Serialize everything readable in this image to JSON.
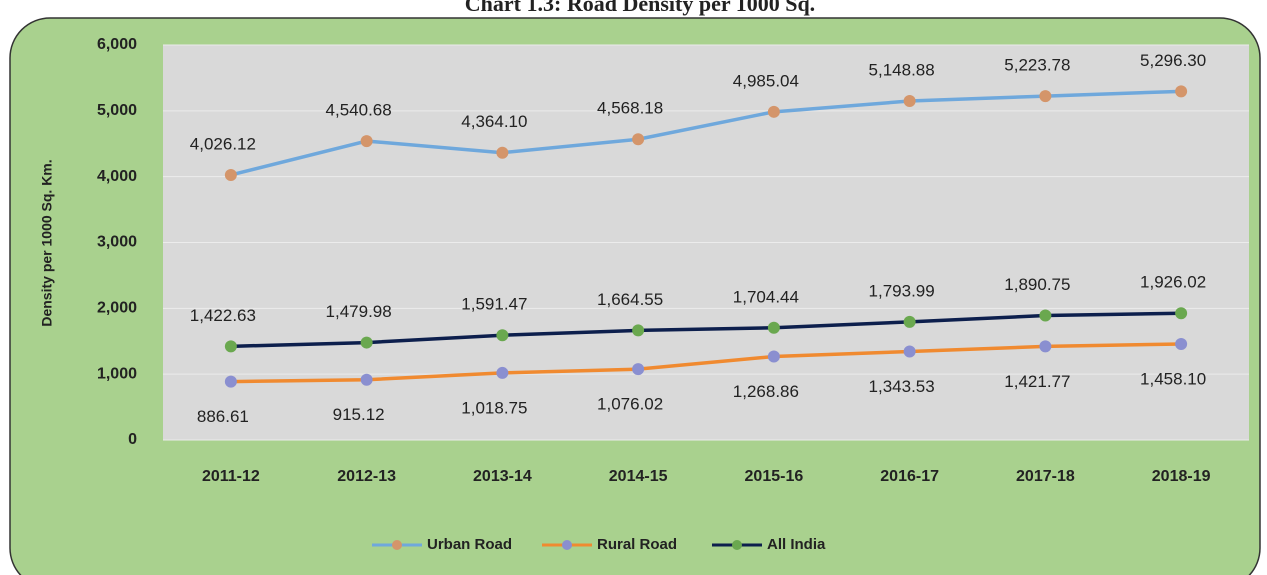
{
  "chart_data": {
    "type": "line",
    "title": "Chart 1.3: Road Density per 1000 Sq.",
    "y_label": "Density per 1000 Sq. Km.",
    "categories": [
      "2011-12",
      "2012-13",
      "2013-14",
      "2014-15",
      "2015-16",
      "2016-17",
      "2017-18",
      "2018-19"
    ],
    "series": [
      {
        "name": "Urban Road",
        "color": "#6fa8dc",
        "marker_color": "#d4956a",
        "values": [
          4026.12,
          4540.68,
          4364.1,
          4568.18,
          4985.04,
          5148.88,
          5223.78,
          5296.3
        ],
        "value_labels": [
          "4,026.12",
          "4,540.68",
          "4,364.10",
          "4,568.18",
          "4,985.04",
          "5,148.88",
          "5,223.78",
          "5,296.30"
        ]
      },
      {
        "name": "Rural Road",
        "color": "#f08a30",
        "marker_color": "#8a8fd0",
        "values": [
          886.61,
          915.12,
          1018.75,
          1076.02,
          1268.86,
          1343.53,
          1421.77,
          1458.1
        ],
        "value_labels": [
          "886.61",
          "915.12",
          "1,018.75",
          "1,076.02",
          "1,268.86",
          "1,343.53",
          "1,421.77",
          "1,458.10"
        ]
      },
      {
        "name": "All India",
        "color": "#0d1f4d",
        "marker_color": "#6aa84f",
        "values": [
          1422.63,
          1479.98,
          1591.47,
          1664.55,
          1704.44,
          1793.99,
          1890.75,
          1926.02
        ],
        "value_labels": [
          "1,422.63",
          "1,479.98",
          "1,591.47",
          "1,664.55",
          "1,704.44",
          "1,793.99",
          "1,890.75",
          "1,926.02"
        ]
      }
    ],
    "ylim": [
      0,
      6000
    ],
    "yticks": [
      0,
      {
        "value": 1000,
        "label": "1,000"
      },
      {
        "value": 2000,
        "label": "2,000"
      },
      {
        "value": 3000,
        "label": "3,000"
      },
      {
        "value": 4000,
        "label": "4,000"
      },
      {
        "value": 5000,
        "label": "5,000"
      },
      {
        "value": 6000,
        "label": "6,000"
      }
    ],
    "grid": true
  }
}
